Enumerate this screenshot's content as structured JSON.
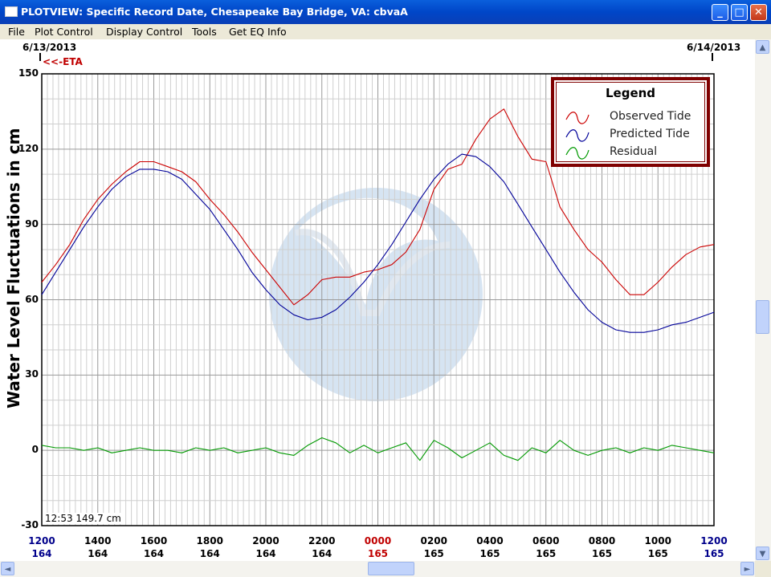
{
  "window": {
    "title": "PLOTVIEW: Specific Record Date, Chesapeake Bay Bridge, VA: cbvaA",
    "minimize_glyph": "_",
    "maximize_glyph": "□",
    "close_glyph": "✕"
  },
  "menu": [
    "File",
    "Plot Control",
    "Display Control",
    "Tools",
    "Get EQ Info"
  ],
  "header": {
    "date_left": "6/13/2013",
    "date_right": "6/14/2013",
    "eta_marker": "<<-ETA"
  },
  "readout": "12:53 149.7 cm",
  "legend": {
    "title": "Legend",
    "items": [
      {
        "label": "Observed Tide",
        "color": "#cc0000"
      },
      {
        "label": "Predicted Tide",
        "color": "#000099"
      },
      {
        "label": "Residual",
        "color": "#009900"
      }
    ]
  },
  "scrollbar": {
    "up": "▲",
    "down": "▼",
    "left": "◄",
    "right": "►"
  },
  "chart_data": {
    "type": "line",
    "ylabel": "Water Level Fluctuations in cm",
    "ylim": [
      -30,
      150
    ],
    "yticks": [
      150,
      120,
      90,
      60,
      30,
      0,
      -30
    ],
    "xlim": [
      12,
      36
    ],
    "x_tick_hours": [
      12,
      14,
      16,
      18,
      20,
      22,
      24,
      26,
      28,
      30,
      32,
      34,
      36
    ],
    "x_tick_labels": [
      "1200",
      "1400",
      "1600",
      "1800",
      "2000",
      "2200",
      "0000",
      "0200",
      "0400",
      "0600",
      "0800",
      "1000",
      "1200"
    ],
    "x_tick_days": [
      "164",
      "164",
      "164",
      "164",
      "164",
      "164",
      "165",
      "165",
      "165",
      "165",
      "165",
      "165",
      "165"
    ],
    "grid": true,
    "legend_position": "top-right",
    "series": [
      {
        "name": "Observed Tide",
        "color": "#cc0000",
        "x": [
          12.0,
          12.5,
          13.0,
          13.5,
          14.0,
          14.5,
          15.0,
          15.5,
          16.0,
          16.5,
          17.0,
          17.5,
          18.0,
          18.5,
          19.0,
          19.5,
          20.0,
          20.5,
          21.0,
          21.5,
          22.0,
          22.5,
          23.0,
          23.5,
          24.0,
          24.5,
          25.0,
          25.5,
          26.0,
          26.5,
          27.0,
          27.5,
          28.0,
          28.5,
          29.0,
          29.5,
          30.0,
          30.5,
          31.0,
          31.5,
          32.0,
          32.5,
          33.0,
          33.5,
          34.0,
          34.5,
          35.0,
          35.5,
          36.0
        ],
        "y": [
          67,
          74,
          82,
          92,
          100,
          106,
          111,
          115,
          115,
          113,
          111,
          107,
          100,
          94,
          87,
          79,
          72,
          65,
          58,
          62,
          68,
          69,
          69,
          71,
          72,
          74,
          79,
          88,
          104,
          112,
          114,
          124,
          132,
          136,
          125,
          116,
          115,
          97,
          88,
          80,
          75,
          68,
          62,
          62,
          67,
          73,
          78,
          81,
          82
        ]
      },
      {
        "name": "Predicted Tide",
        "color": "#000099",
        "x": [
          12.0,
          12.5,
          13.0,
          13.5,
          14.0,
          14.5,
          15.0,
          15.5,
          16.0,
          16.5,
          17.0,
          17.5,
          18.0,
          18.5,
          19.0,
          19.5,
          20.0,
          20.5,
          21.0,
          21.5,
          22.0,
          22.5,
          23.0,
          23.5,
          24.0,
          24.5,
          25.0,
          25.5,
          26.0,
          26.5,
          27.0,
          27.5,
          28.0,
          28.5,
          29.0,
          29.5,
          30.0,
          30.5,
          31.0,
          31.5,
          32.0,
          32.5,
          33.0,
          33.5,
          34.0,
          34.5,
          35.0,
          35.5,
          36.0
        ],
        "y": [
          62,
          71,
          80,
          89,
          97,
          104,
          109,
          112,
          112,
          111,
          108,
          102,
          96,
          88,
          80,
          71,
          64,
          58,
          54,
          52,
          53,
          56,
          61,
          67,
          74,
          82,
          91,
          100,
          108,
          114,
          118,
          117,
          113,
          107,
          98,
          89,
          80,
          71,
          63,
          56,
          51,
          48,
          47,
          47,
          48,
          50,
          51,
          53,
          55
        ]
      },
      {
        "name": "Residual",
        "color": "#009900",
        "x": [
          12.0,
          12.5,
          13.0,
          13.5,
          14.0,
          14.5,
          15.0,
          15.5,
          16.0,
          16.5,
          17.0,
          17.5,
          18.0,
          18.5,
          19.0,
          19.5,
          20.0,
          20.5,
          21.0,
          21.5,
          22.0,
          22.5,
          23.0,
          23.5,
          24.0,
          24.5,
          25.0,
          25.5,
          26.0,
          26.5,
          27.0,
          27.5,
          28.0,
          28.5,
          29.0,
          29.5,
          30.0,
          30.5,
          31.0,
          31.5,
          32.0,
          32.5,
          33.0,
          33.5,
          34.0,
          34.5,
          35.0,
          35.5,
          36.0
        ],
        "y": [
          2,
          1,
          1,
          0,
          1,
          -1,
          0,
          1,
          0,
          0,
          -1,
          1,
          0,
          1,
          -1,
          0,
          1,
          -1,
          -2,
          2,
          5,
          3,
          -1,
          2,
          -1,
          1,
          3,
          -4,
          4,
          1,
          -3,
          0,
          3,
          -2,
          -4,
          1,
          -1,
          4,
          0,
          -2,
          0,
          1,
          -1,
          1,
          0,
          2,
          1,
          0,
          -1
        ]
      }
    ]
  }
}
